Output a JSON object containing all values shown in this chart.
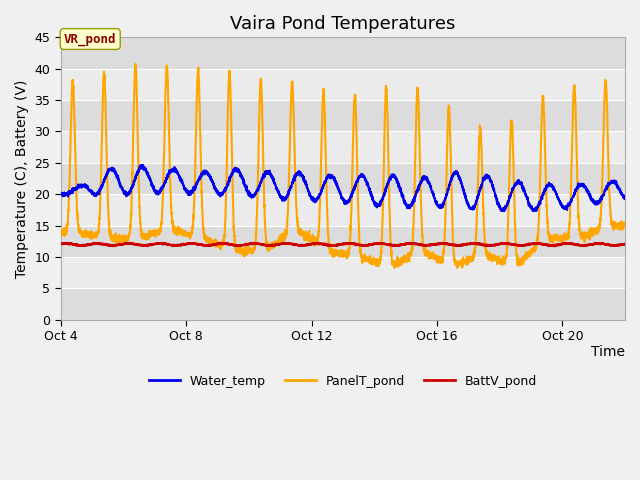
{
  "title": "Vaira Pond Temperatures",
  "xlabel": "Time",
  "ylabel": "Temperature (C), Battery (V)",
  "ylim": [
    0,
    45
  ],
  "yticks": [
    0,
    5,
    10,
    15,
    20,
    25,
    30,
    35,
    40,
    45
  ],
  "xlim": [
    4,
    22
  ],
  "xtick_days": [
    4,
    8,
    12,
    16,
    20
  ],
  "xtick_labels": [
    "Oct 4",
    "Oct 8",
    "Oct 12",
    "Oct 16",
    "Oct 20"
  ],
  "annotation_text": "VR_pond",
  "annotation_color": "#8B0000",
  "annotation_bg": "#FFFFCC",
  "water_temp_color": "#0000EE",
  "panel_temp_color": "#FFA500",
  "batt_color": "#CC0000",
  "legend_labels": [
    "Water_temp",
    "PanelT_pond",
    "BattV_pond"
  ],
  "title_fontsize": 13,
  "axis_label_fontsize": 10,
  "tick_fontsize": 9,
  "bg_color_outer": "#F0F0F0",
  "stripe_light": "#EBEBEB",
  "stripe_dark": "#DCDCDC",
  "grid_line_color": "#FFFFFF",
  "line_width": 1.5,
  "panel_peaks": [
    38,
    39.5,
    40.5,
    40.5,
    39.8,
    39.5,
    38,
    37.8,
    36.2,
    35.5,
    37,
    36.8,
    33.5,
    30,
    32,
    36,
    37.5,
    38.2
  ],
  "panel_mins": [
    14,
    13,
    13,
    14.5,
    13,
    11,
    11,
    14.5,
    11,
    10,
    8.5,
    11,
    8.5,
    10.5,
    8.5,
    13,
    13,
    15
  ],
  "water_peaks": [
    21,
    24,
    24.5,
    24,
    23.5,
    24,
    23.5,
    23.5,
    23,
    23,
    23,
    22.5,
    23.5,
    23,
    22,
    21.5,
    21.5,
    22,
    23
  ],
  "water_mins": [
    20,
    20,
    20,
    20.5,
    20,
    20,
    19.5,
    19,
    19,
    18.5,
    18,
    18,
    18,
    17.5,
    17.5,
    17.5,
    18,
    19
  ],
  "batt_base": 12.0,
  "batt_amp": 0.15
}
